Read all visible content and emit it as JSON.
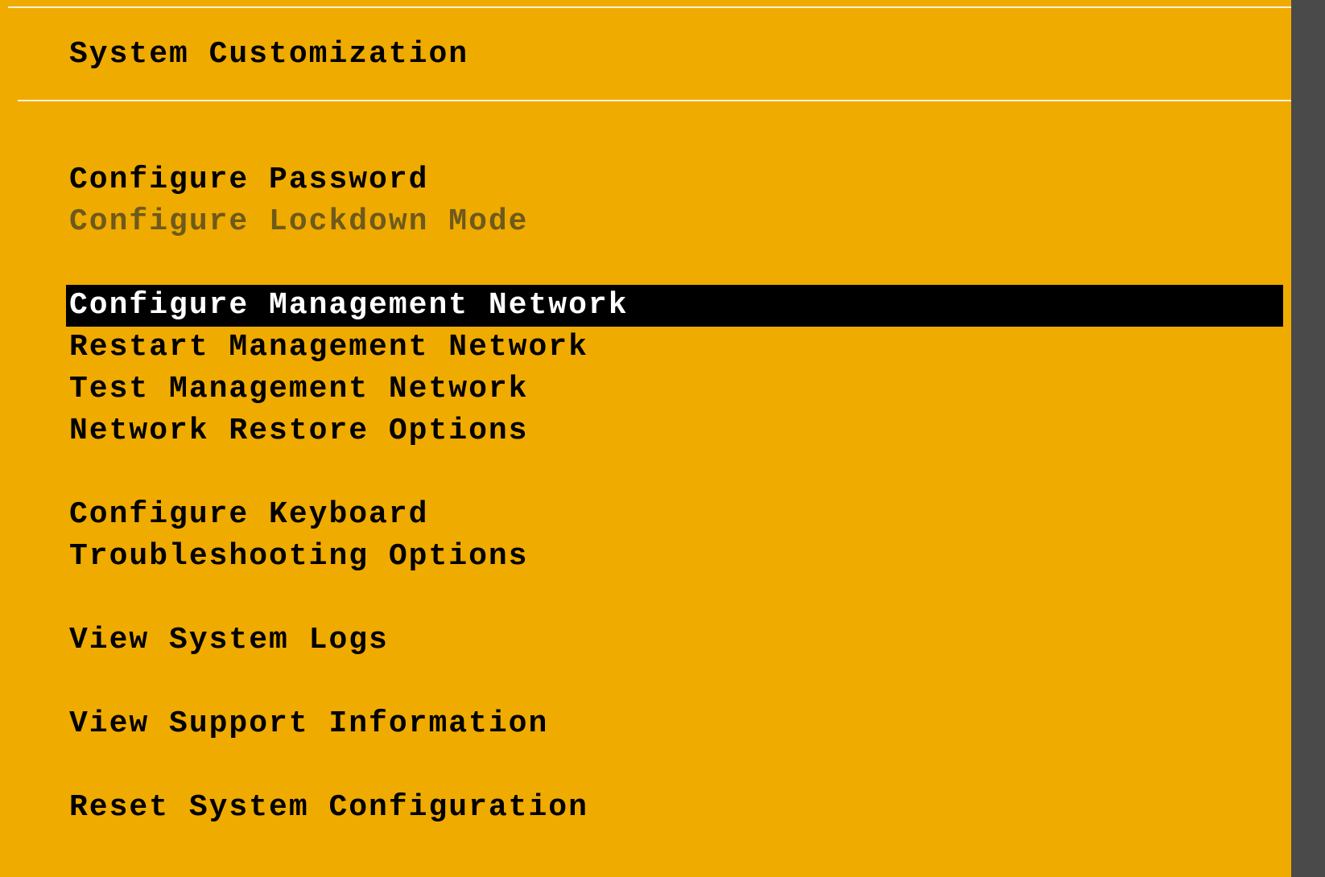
{
  "colors": {
    "background": "#f0ab00",
    "foreground": "#000000",
    "muted": "#6e5a1a",
    "selected_bg": "#000000",
    "selected_fg": "#ffffff",
    "rule": "#ffffff"
  },
  "header": {
    "title": "System Customization"
  },
  "menu": {
    "groups": [
      [
        {
          "label": "Configure Password",
          "state": "normal"
        },
        {
          "label": "Configure Lockdown Mode",
          "state": "disabled"
        }
      ],
      [
        {
          "label": "Configure Management Network",
          "state": "selected"
        },
        {
          "label": "Restart Management Network",
          "state": "normal"
        },
        {
          "label": "Test Management Network",
          "state": "normal"
        },
        {
          "label": "Network Restore Options",
          "state": "normal"
        }
      ],
      [
        {
          "label": "Configure Keyboard",
          "state": "normal"
        },
        {
          "label": "Troubleshooting Options",
          "state": "normal"
        }
      ],
      [
        {
          "label": "View System Logs",
          "state": "normal"
        }
      ],
      [
        {
          "label": "View Support Information",
          "state": "normal"
        }
      ],
      [
        {
          "label": "Reset System Configuration",
          "state": "normal"
        }
      ]
    ]
  }
}
